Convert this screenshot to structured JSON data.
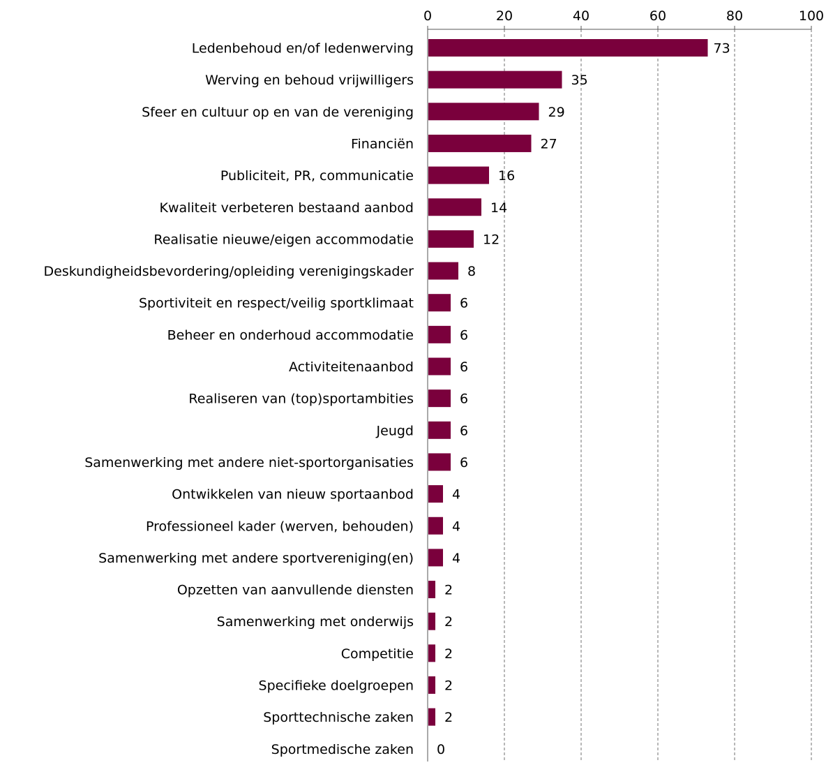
{
  "chart_data": {
    "type": "bar",
    "orientation": "horizontal",
    "title": "",
    "xlabel": "",
    "ylabel": "",
    "xlim": [
      0,
      100
    ],
    "ticks": [
      0,
      20,
      40,
      60,
      80,
      100
    ],
    "tick_labels": [
      "0",
      "20",
      "40",
      "60",
      "80",
      "100"
    ],
    "grid": true,
    "grid_style": "dashed vertical",
    "axis_position": "top",
    "bar_color": "#7a003c",
    "categories": [
      "Ledenbehoud en/of ledenwerving",
      "Werving en behoud vrijwilligers",
      "Sfeer en cultuur op en van de vereniging",
      "Financiën",
      "Publiciteit, PR, communicatie",
      "Kwaliteit verbeteren bestaand aanbod",
      "Realisatie nieuwe/eigen accommodatie",
      "Deskundigheidsbevordering/opleiding verenigingskader",
      "Sportiviteit en respect/veilig sportklimaat",
      "Beheer en onderhoud accommodatie",
      "Activiteitenaanbod",
      "Realiseren van (top)sportambities",
      "Jeugd",
      "Samenwerking met andere niet-sportorganisaties",
      "Ontwikkelen van nieuw sportaanbod",
      "Professioneel kader (werven, behouden)",
      "Samenwerking met andere sportvereniging(en)",
      "Opzetten van aanvullende diensten",
      "Samenwerking met onderwijs",
      "Competitie",
      "Specifieke doelgroepen",
      "Sporttechnische zaken",
      "Sportmedische zaken"
    ],
    "values": [
      73,
      35,
      29,
      27,
      16,
      14,
      12,
      8,
      6,
      6,
      6,
      6,
      6,
      6,
      4,
      4,
      4,
      2,
      2,
      2,
      2,
      2,
      0
    ],
    "value_labels": [
      "73",
      "35",
      "29",
      "27",
      "16",
      "14",
      "12",
      "8",
      "6",
      "6",
      "6",
      "6",
      "6",
      "6",
      "4",
      "4",
      "4",
      "2",
      "2",
      "2",
      "2",
      "2",
      "0"
    ]
  }
}
